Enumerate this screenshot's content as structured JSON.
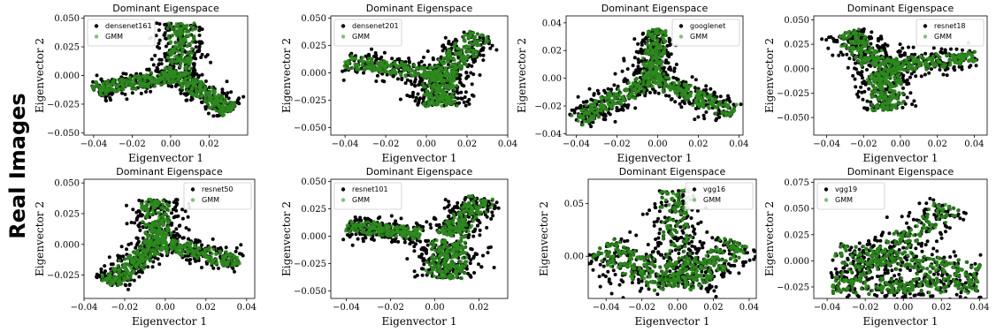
{
  "row_label": "Real Images",
  "colors": {
    "data": "#000000",
    "gmm": "#2e8b1f",
    "gmm_legend": "#7fbf7f"
  },
  "chart_data": [
    {
      "type": "scatter",
      "title": "Dominant Eigenspace",
      "xlabel": "Eigenvector 1",
      "ylabel": "Eigenvector 2",
      "xlim": [
        -0.045,
        0.04
      ],
      "ylim": [
        -0.052,
        0.052
      ],
      "xticks": [
        -0.04,
        -0.02,
        0.0,
        0.02
      ],
      "xtick_labels": [
        "−0.04",
        "−0.02",
        "0.00",
        "0.02"
      ],
      "yticks": [
        -0.05,
        -0.025,
        0.0,
        0.025,
        0.05
      ],
      "ytick_labels": [
        "−0.050",
        "−0.025",
        "0.000",
        "0.025",
        "0.050"
      ],
      "legend": {
        "position": "top-left",
        "entries": [
          "densenet161",
          "GMM"
        ]
      },
      "clusters": [
        {
          "from": [
            0.006,
            0.045
          ],
          "to": [
            0.004,
            0.0
          ],
          "width": 0.014,
          "gmm": 0.8
        },
        {
          "from": [
            0.004,
            0.0
          ],
          "to": [
            0.031,
            -0.031
          ],
          "width": 0.012,
          "gmm": 0.8
        },
        {
          "from": [
            0.004,
            0.0
          ],
          "to": [
            -0.04,
            -0.012
          ],
          "width": 0.011,
          "gmm": 0.85
        }
      ]
    },
    {
      "type": "scatter",
      "title": "Dominant Eigenspace",
      "xlabel": "Eigenvector 1",
      "ylabel": "Eigenvector 2",
      "xlim": [
        -0.047,
        0.04
      ],
      "ylim": [
        -0.057,
        0.052
      ],
      "xticks": [
        -0.04,
        -0.02,
        0.0,
        0.02,
        0.04
      ],
      "xtick_labels": [
        "−0.04",
        "−0.02",
        "0.00",
        "0.02",
        "0.04"
      ],
      "yticks": [
        -0.05,
        -0.025,
        0.0,
        0.025,
        0.05
      ],
      "ytick_labels": [
        "−0.050",
        "−0.025",
        "0.000",
        "0.025",
        "0.050"
      ],
      "legend": {
        "position": "top-left",
        "entries": [
          "densenet201",
          "GMM"
        ]
      },
      "clusters": [
        {
          "from": [
            0.007,
            -0.002
          ],
          "to": [
            -0.039,
            0.01
          ],
          "width": 0.012,
          "gmm": 0.9
        },
        {
          "from": [
            0.007,
            -0.002
          ],
          "to": [
            0.026,
            0.035
          ],
          "width": 0.014,
          "gmm": 0.8
        },
        {
          "from": [
            0.007,
            -0.002
          ],
          "to": [
            0.007,
            -0.03
          ],
          "width": 0.016,
          "gmm": 0.85
        }
      ]
    },
    {
      "type": "scatter",
      "title": "Dominant Eigenspace",
      "xlabel": "Eigenvector 1",
      "ylabel": "Eigenvector 2",
      "xlim": [
        -0.045,
        0.042
      ],
      "ylim": [
        -0.041,
        0.045
      ],
      "xticks": [
        -0.04,
        -0.02,
        0.0,
        0.02,
        0.04
      ],
      "xtick_labels": [
        "−0.04",
        "−0.02",
        "0.00",
        "0.02",
        "0.04"
      ],
      "yticks": [
        -0.04,
        -0.02,
        0.0,
        0.02,
        0.04
      ],
      "ytick_labels": [
        "−0.04",
        "−0.02",
        "0.00",
        "0.02",
        "0.04"
      ],
      "legend": {
        "position": "top-right",
        "entries": [
          "googlenet",
          "GMM"
        ]
      },
      "clusters": [
        {
          "from": [
            -0.003,
            0.0
          ],
          "to": [
            0.0,
            0.035
          ],
          "width": 0.01,
          "gmm": 0.8
        },
        {
          "from": [
            -0.003,
            0.0
          ],
          "to": [
            0.037,
            -0.025
          ],
          "width": 0.011,
          "gmm": 0.82
        },
        {
          "from": [
            -0.003,
            0.0
          ],
          "to": [
            -0.04,
            -0.03
          ],
          "width": 0.011,
          "gmm": 0.88
        }
      ]
    },
    {
      "type": "scatter",
      "title": "Dominant Eigenspace",
      "xlabel": "Eigenvector 1",
      "ylabel": "Eigenvector 2",
      "xlim": [
        -0.047,
        0.047
      ],
      "ylim": [
        -0.068,
        0.054
      ],
      "xticks": [
        -0.04,
        -0.02,
        0.0,
        0.02,
        0.04
      ],
      "xtick_labels": [
        "−0.04",
        "−0.02",
        "0.00",
        "0.02",
        "0.04"
      ],
      "yticks": [
        -0.05,
        -0.025,
        0.0,
        0.025,
        0.05
      ],
      "ytick_labels": [
        "−0.050",
        "−0.025",
        "0.000",
        "0.025",
        "0.050"
      ],
      "legend": {
        "position": "top-right",
        "entries": [
          "resnet18",
          "GMM"
        ]
      },
      "clusters": [
        {
          "from": [
            -0.012,
            0.003
          ],
          "to": [
            -0.029,
            0.037
          ],
          "width": 0.016,
          "gmm": 0.75
        },
        {
          "from": [
            -0.008,
            0.003
          ],
          "to": [
            0.041,
            0.011
          ],
          "width": 0.014,
          "gmm": 0.9
        },
        {
          "from": [
            -0.01,
            0.0
          ],
          "to": [
            -0.006,
            -0.042
          ],
          "width": 0.018,
          "gmm": 0.85
        }
      ]
    },
    {
      "type": "scatter",
      "title": "Dominant Eigenspace",
      "xlabel": "Eigenvector 1",
      "ylabel": "Eigenvector 2",
      "xlim": [
        -0.04,
        0.044
      ],
      "ylim": [
        -0.044,
        0.053
      ],
      "xticks": [
        -0.04,
        -0.02,
        0.0,
        0.02,
        0.04
      ],
      "xtick_labels": [
        "−0.04",
        "−0.02",
        "0.00",
        "0.02",
        "0.04"
      ],
      "yticks": [
        -0.025,
        0.0,
        0.025,
        0.05
      ],
      "ytick_labels": [
        "−0.025",
        "0.000",
        "0.025",
        "0.050"
      ],
      "legend": {
        "position": "top-right",
        "entries": [
          "resnet50",
          "GMM"
        ]
      },
      "clusters": [
        {
          "from": [
            -0.004,
            0.001
          ],
          "to": [
            -0.005,
            0.036
          ],
          "width": 0.014,
          "gmm": 0.8
        },
        {
          "from": [
            -0.004,
            0.001
          ],
          "to": [
            0.037,
            -0.014
          ],
          "width": 0.011,
          "gmm": 0.85
        },
        {
          "from": [
            -0.004,
            0.001
          ],
          "to": [
            -0.028,
            -0.032
          ],
          "width": 0.012,
          "gmm": 0.9
        }
      ]
    },
    {
      "type": "scatter",
      "title": "Dominant Eigenspace",
      "xlabel": "Eigenvector 1",
      "ylabel": "Eigenvector 2",
      "xlim": [
        -0.047,
        0.033
      ],
      "ylim": [
        -0.057,
        0.052
      ],
      "xticks": [
        -0.04,
        -0.02,
        0.0,
        0.02
      ],
      "xtick_labels": [
        "−0.04",
        "−0.02",
        "0.00",
        "0.02"
      ],
      "yticks": [
        -0.05,
        -0.025,
        0.0,
        0.025,
        0.05
      ],
      "ytick_labels": [
        "−0.050",
        "−0.025",
        "0.000",
        "0.025",
        "0.050"
      ],
      "legend": {
        "position": "top-left",
        "entries": [
          "resnet101",
          "GMM"
        ]
      },
      "clusters": [
        {
          "from": [
            -0.039,
            0.009
          ],
          "to": [
            -0.006,
            0.002
          ],
          "width": 0.011,
          "gmm": 0.9
        },
        {
          "from": [
            0.007,
            0.001
          ],
          "to": [
            0.021,
            0.035
          ],
          "width": 0.013,
          "gmm": 0.8
        },
        {
          "from": [
            0.007,
            -0.004
          ],
          "to": [
            0.005,
            -0.038
          ],
          "width": 0.017,
          "gmm": 0.85
        }
      ]
    },
    {
      "type": "scatter",
      "title": "Dominant Eigenspace",
      "xlabel": "Eigenvector 1",
      "ylabel": "Eigenvector 2",
      "xlim": [
        -0.05,
        0.044
      ],
      "ylim": [
        -0.04,
        0.073
      ],
      "xticks": [
        -0.04,
        -0.02,
        0.0,
        0.02,
        0.04
      ],
      "xtick_labels": [
        "−0.04",
        "−0.02",
        "0.00",
        "0.02",
        "0.04"
      ],
      "yticks": [
        0.0,
        0.05
      ],
      "ytick_labels": [
        "0.00",
        "0.05"
      ],
      "legend": {
        "position": "top-right",
        "entries": [
          "vgg16",
          "GMM"
        ]
      },
      "clusters": [
        {
          "from": [
            0.0,
            -0.028
          ],
          "to": [
            -0.001,
            0.062
          ],
          "width": 0.016,
          "gmm": 0.75
        },
        {
          "from": [
            -0.002,
            -0.028
          ],
          "to": [
            -0.042,
            0.009
          ],
          "width": 0.022,
          "gmm": 0.8
        },
        {
          "from": [
            0.002,
            -0.028
          ],
          "to": [
            0.033,
            0.013
          ],
          "width": 0.02,
          "gmm": 0.8
        }
      ]
    },
    {
      "type": "scatter",
      "title": "Dominant Eigenspace",
      "xlabel": "Eigenvector 1",
      "ylabel": "Eigenvector 2",
      "xlim": [
        -0.047,
        0.044
      ],
      "ylim": [
        -0.036,
        0.078
      ],
      "xticks": [
        -0.04,
        -0.02,
        0.0,
        0.02,
        0.04
      ],
      "xtick_labels": [
        "−0.04",
        "−0.02",
        "0.00",
        "0.02",
        "0.04"
      ],
      "yticks": [
        -0.025,
        0.0,
        0.025,
        0.05,
        0.075
      ],
      "ytick_labels": [
        "−0.025",
        "0.000",
        "0.025",
        "0.050",
        "0.075"
      ],
      "legend": {
        "position": "top-left",
        "entries": [
          "vgg19",
          "GMM"
        ]
      },
      "clusters": [
        {
          "from": [
            -0.035,
            0.008
          ],
          "to": [
            0.038,
            -0.012
          ],
          "width": 0.02,
          "gmm": 0.8
        },
        {
          "from": [
            -0.03,
            -0.02
          ],
          "to": [
            0.024,
            0.052
          ],
          "width": 0.016,
          "gmm": 0.78
        },
        {
          "from": [
            -0.037,
            -0.025
          ],
          "to": [
            0.04,
            -0.022
          ],
          "width": 0.015,
          "gmm": 0.85
        }
      ]
    }
  ]
}
